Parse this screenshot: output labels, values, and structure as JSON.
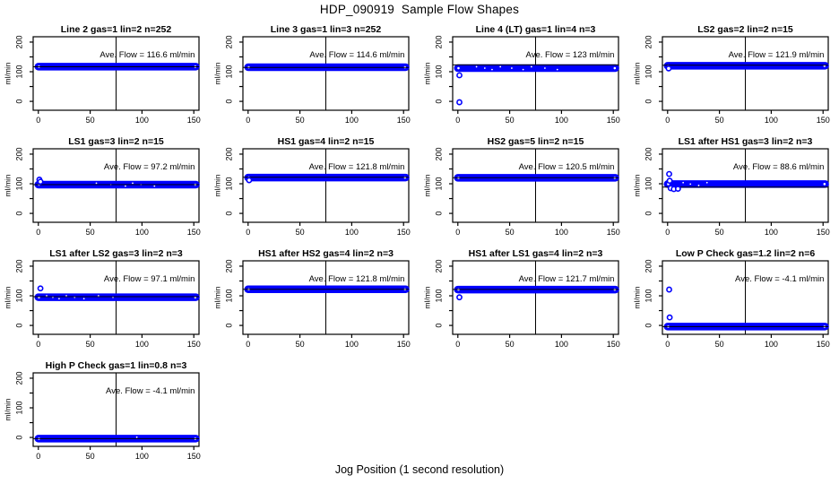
{
  "title": "HDP_090919  Sample Flow Shapes",
  "xlabel": "Jog Position (1 second resolution)",
  "colors": {
    "point_blue": "#0000ff",
    "axis_black": "#000000",
    "background": "#ffffff"
  },
  "chart_data": {
    "type": "scatter",
    "layout": "4x4 grid of small multiples, 13 panels",
    "axes": {
      "ylabel": "ml/min",
      "x_ticks": [
        0,
        50,
        100,
        150
      ],
      "y_ticks_all": [
        0,
        50,
        100,
        150,
        200
      ],
      "y_ticks_labeled": [
        0,
        100,
        200
      ],
      "x_range": [
        -5,
        155
      ],
      "y_range": [
        -30,
        218
      ],
      "vline_x": 75,
      "band_x_extent": [
        0,
        152
      ],
      "grid": false
    },
    "panels": [
      {
        "title": "Line 2 gas=1 lin=2 n=252",
        "ave_flow": 116.6,
        "annotation": "Ave. Flow =  116.6  ml/min",
        "band_center": 117,
        "outliers": [],
        "specks": []
      },
      {
        "title": "Line 3 gas=1 lin=3 n=252",
        "ave_flow": 114.6,
        "annotation": "Ave. Flow =  114.6  ml/min",
        "band_center": 115,
        "outliers": [],
        "specks": []
      },
      {
        "title": "Line 4 (LT) gas=1 lin=4 n=3",
        "ave_flow": 123,
        "annotation": "Ave. Flow =  123  ml/min",
        "band_center": 112,
        "outliers": [
          [
            1.5,
            88
          ],
          [
            1.5,
            -3
          ]
        ],
        "specks": [
          18,
          26,
          33,
          41,
          52,
          63,
          71,
          84,
          96
        ]
      },
      {
        "title": "LS2 gas=2 lin=2 n=15",
        "ave_flow": 121.9,
        "annotation": "Ave. Flow =  121.9  ml/min",
        "band_center": 120,
        "outliers": [
          [
            1,
            111
          ]
        ],
        "specks": []
      },
      {
        "title": "LS1 gas=3 lin=2 n=15",
        "ave_flow": 97.2,
        "annotation": "Ave. Flow =  97.2  ml/min",
        "band_center": 97,
        "outliers": [
          [
            1,
            114
          ],
          [
            2,
            107
          ]
        ],
        "specks": [
          56,
          70,
          84,
          91,
          99,
          112
        ]
      },
      {
        "title": "HS1 gas=4 lin=2 n=15",
        "ave_flow": 121.8,
        "annotation": "Ave. Flow =  121.8  ml/min",
        "band_center": 121,
        "outliers": [
          [
            1,
            112
          ]
        ],
        "specks": []
      },
      {
        "title": "HS2 gas=5 lin=2 n=15",
        "ave_flow": 120.5,
        "annotation": "Ave. Flow =  120.5  ml/min",
        "band_center": 120,
        "outliers": [],
        "specks": []
      },
      {
        "title": "LS1 after HS1 gas=3 lin=2 n=3",
        "ave_flow": 88.6,
        "annotation": "Ave. Flow =  88.6  ml/min",
        "band_center": 99,
        "outliers": [
          [
            1.5,
            133
          ],
          [
            2,
            110
          ],
          [
            3,
            85
          ],
          [
            6,
            82
          ],
          [
            10,
            83
          ]
        ],
        "specks": [
          15,
          22,
          30,
          38
        ]
      },
      {
        "title": "LS1 after LS2 gas=3 lin=2 n=3",
        "ave_flow": 97.1,
        "annotation": "Ave. Flow =  97.1  ml/min",
        "band_center": 95,
        "outliers": [
          [
            2,
            125
          ]
        ],
        "specks": [
          8,
          14,
          20,
          27,
          35,
          44,
          58,
          72
        ]
      },
      {
        "title": "HS1 after HS2 gas=4 lin=2 n=3",
        "ave_flow": 121.8,
        "annotation": "Ave. Flow =  121.8  ml/min",
        "band_center": 122,
        "outliers": [],
        "specks": []
      },
      {
        "title": "HS1 after LS1 gas=4 lin=2 n=3",
        "ave_flow": 121.7,
        "annotation": "Ave. Flow =  121.7  ml/min",
        "band_center": 121,
        "outliers": [
          [
            1.5,
            95
          ]
        ],
        "specks": []
      },
      {
        "title": "Low P Check gas=1.2 lin=2 n=6",
        "ave_flow": -4.1,
        "annotation": "Ave. Flow =  -4.1  ml/min",
        "band_center": -4,
        "outliers": [
          [
            1.5,
            121
          ],
          [
            2,
            27
          ]
        ],
        "specks": []
      },
      {
        "title": "High P Check gas=1 lin=0.8 n=3",
        "ave_flow": -4.1,
        "annotation": "Ave. Flow =  -4.1  ml/min",
        "band_center": -4,
        "outliers": [],
        "specks": [
          95
        ]
      }
    ]
  }
}
